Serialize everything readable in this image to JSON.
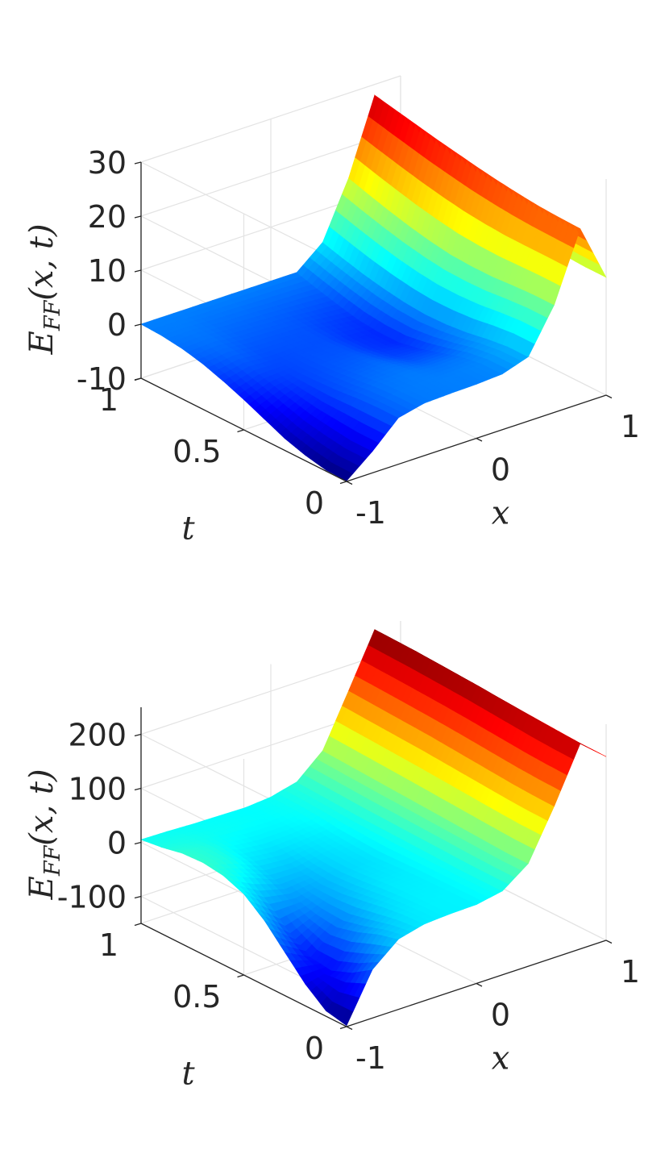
{
  "chart_data": [
    {
      "type": "surface",
      "xlabel": "x",
      "ylabel": "t",
      "zlabel": {
        "main": "E",
        "sub": "FF",
        "args": "(x, t)"
      },
      "x_ticks": [
        "-1",
        "0",
        "1"
      ],
      "y_ticks": [
        "0",
        "0.5",
        "1"
      ],
      "z_ticks": [
        "-10",
        "0",
        "10",
        "20",
        "30"
      ],
      "xlim": [
        -1,
        1
      ],
      "ylim": [
        0,
        1
      ],
      "zlim": [
        -10,
        30
      ],
      "colormap": "jet",
      "color_range": [
        -10,
        30
      ],
      "grid": true,
      "x": [
        -1,
        -0.8,
        -0.6,
        -0.4,
        -0.2,
        0,
        0.2,
        0.4,
        0.6,
        0.8,
        1
      ],
      "t": [
        0,
        0.1,
        0.2,
        0.3,
        0.4,
        0.5,
        0.6,
        0.7,
        0.8,
        0.9,
        1
      ],
      "z": [
        [
          -9.9,
          -6.0,
          -1.4,
          -0.3,
          -0.1,
          0.0,
          0.3,
          1.9,
          9.9,
          22.4,
          11.8
        ],
        [
          -9.8,
          -6.0,
          -1.4,
          -0.3,
          -0.1,
          0.0,
          0.3,
          1.9,
          9.9,
          22.5,
          11.8
        ],
        [
          -9.0,
          -5.5,
          -1.6,
          -0.5,
          -0.2,
          -0.5,
          -0.3,
          1.4,
          9.7,
          22.7,
          12.0
        ],
        [
          -7.8,
          -4.9,
          -2.0,
          -1.0,
          -0.6,
          -1.5,
          -1.5,
          0.7,
          9.4,
          23.1,
          12.2
        ],
        [
          -6.1,
          -3.9,
          -2.2,
          -1.5,
          -1.2,
          -2.4,
          -2.6,
          0.3,
          9.4,
          23.6,
          12.5
        ],
        [
          -4.4,
          -2.8,
          -2.3,
          -1.8,
          -1.7,
          -2.9,
          -3.4,
          0.2,
          9.6,
          24.2,
          12.7
        ],
        [
          -2.9,
          -1.8,
          -2.1,
          -1.9,
          -1.9,
          -3.0,
          -3.4,
          0.5,
          10.2,
          24.9,
          13.0
        ],
        [
          -1.6,
          -1.0,
          -1.6,
          -1.7,
          -1.8,
          -2.5,
          -3.0,
          1.1,
          11.0,
          25.6,
          13.3
        ],
        [
          -0.7,
          -0.5,
          -1.0,
          -1.2,
          -1.4,
          -1.8,
          -2.1,
          1.9,
          12.0,
          26.4,
          13.7
        ],
        [
          -0.2,
          -0.2,
          -0.5,
          -0.6,
          -0.8,
          -0.9,
          -1.1,
          2.9,
          13.1,
          27.2,
          14.0
        ],
        [
          0.0,
          0.0,
          0.0,
          0.0,
          0.0,
          0.0,
          0.0,
          4.0,
          14.3,
          28.0,
          14.3
        ]
      ]
    },
    {
      "type": "surface",
      "xlabel": "x",
      "ylabel": "t",
      "zlabel": {
        "main": "E",
        "sub": "FF",
        "args": "(x, t)"
      },
      "x_ticks": [
        "-1",
        "0",
        "1"
      ],
      "y_ticks": [
        "0",
        "0.5",
        "1"
      ],
      "z_ticks": [
        "-100",
        "0",
        "100",
        "200"
      ],
      "xlim": [
        -1,
        1
      ],
      "ylim": [
        0,
        1
      ],
      "zlim": [
        -150,
        250
      ],
      "colormap": "jet",
      "color_range": [
        -150,
        250
      ],
      "grid": true,
      "x": [
        -1,
        -0.8,
        -0.6,
        -0.4,
        -0.2,
        0,
        0.2,
        0.4,
        0.6,
        0.8,
        1
      ],
      "t": [
        0,
        0.1,
        0.2,
        0.3,
        0.4,
        0.5,
        0.6,
        0.7,
        0.8,
        0.9,
        1
      ],
      "z": [
        [
          -148,
          -60,
          -20,
          -8,
          -5,
          -4,
          5,
          40,
          130,
          230,
          190
        ],
        [
          -140,
          -85,
          -30,
          -10,
          -5,
          -4,
          5,
          40,
          131,
          231,
          190
        ],
        [
          -110,
          -100,
          -45,
          -15,
          -6,
          -5,
          5,
          42,
          133,
          233,
          192
        ],
        [
          -70,
          -95,
          -55,
          -22,
          -8,
          -6,
          6,
          44,
          136,
          236,
          194
        ],
        [
          -30,
          -70,
          -50,
          -28,
          -12,
          -8,
          7,
          46,
          139,
          239,
          196
        ],
        [
          0,
          -35,
          -40,
          -30,
          -15,
          -10,
          8,
          48,
          142,
          242,
          198
        ],
        [
          15,
          -5,
          -25,
          -25,
          -14,
          -8,
          9,
          50,
          145,
          244,
          200
        ],
        [
          20,
          10,
          -10,
          -15,
          -10,
          -5,
          10,
          52,
          147,
          246,
          202
        ],
        [
          18,
          12,
          0,
          -5,
          -4,
          0,
          12,
          54,
          149,
          248,
          204
        ],
        [
          10,
          8,
          4,
          2,
          0,
          3,
          14,
          56,
          151,
          249,
          206
        ],
        [
          5,
          4,
          2,
          1,
          0,
          4,
          16,
          58,
          153,
          250,
          208
        ]
      ]
    }
  ]
}
